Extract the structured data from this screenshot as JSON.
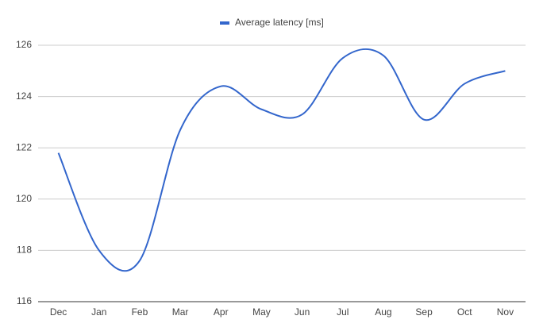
{
  "chart_data": {
    "type": "line",
    "categories": [
      "Dec",
      "Jan",
      "Feb",
      "Mar",
      "Apr",
      "May",
      "Jun",
      "Jul",
      "Aug",
      "Sep",
      "Oct",
      "Nov"
    ],
    "series": [
      {
        "name": "Average latency [ms]",
        "color": "#3366cc",
        "values": [
          121.8,
          118.0,
          117.6,
          122.7,
          124.4,
          123.5,
          123.3,
          125.5,
          125.6,
          123.1,
          124.5,
          125.0
        ]
      }
    ],
    "ylim": [
      116,
      126
    ],
    "yticks": [
      116,
      118,
      120,
      122,
      124,
      126
    ],
    "grid": true,
    "legend": "top",
    "smooth": true
  }
}
